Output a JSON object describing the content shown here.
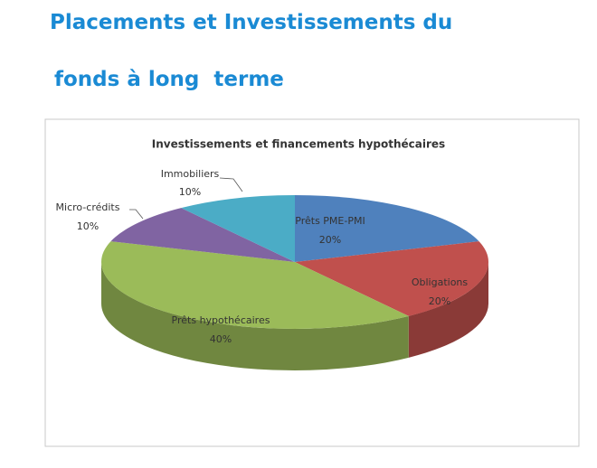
{
  "header": {
    "lines": [
      "Placements et Investissements du",
      "fonds à long  terme"
    ]
  },
  "chart_data": {
    "type": "pie",
    "title": "Investissements et financements hypothécaires",
    "categories": [
      "Prêts PME-PMI",
      "Obligations",
      "Prêts hypothécaires",
      "Micro-crédits",
      "Immobiliers"
    ],
    "values": [
      20,
      20,
      40,
      10,
      10
    ],
    "value_labels": [
      "20%",
      "20%",
      "40%",
      "10%",
      "10%"
    ],
    "colors": [
      "#4f81bd",
      "#c0504d",
      "#9bbb59",
      "#8064a2",
      "#4bacc6"
    ]
  }
}
